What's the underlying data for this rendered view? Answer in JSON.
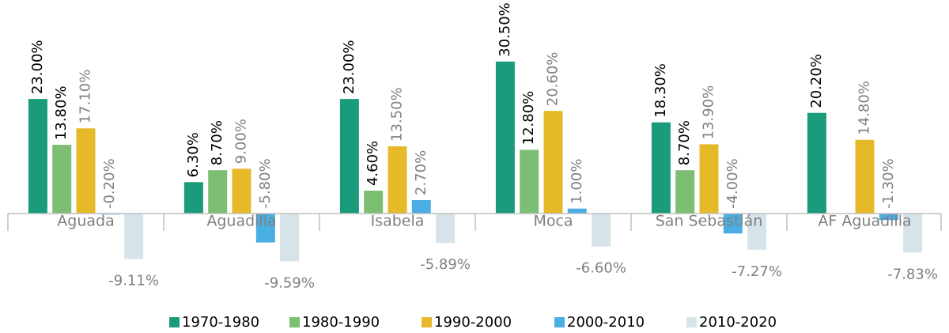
{
  "chart_data": {
    "type": "bar",
    "categories": [
      "Aguada",
      "Aguadilla",
      "Isabela",
      "Moca",
      "San Sebastián",
      "ÁF Aguadilla"
    ],
    "series": [
      {
        "name": "1970-1980",
        "color": "#1a9c7c",
        "values": [
          23.0,
          6.3,
          23.0,
          30.5,
          18.3,
          20.2
        ],
        "value_labels": [
          "23.00%",
          "6.30%",
          "23.00%",
          "30.50%",
          "18.30%",
          "20.20%"
        ]
      },
      {
        "name": "1980-1990",
        "color": "#7cbf72",
        "values": [
          13.8,
          8.7,
          4.6,
          12.8,
          8.7,
          null
        ],
        "value_labels": [
          "13.80%",
          "8.70%",
          "4.60%",
          "12.80%",
          "8.70%",
          null
        ]
      },
      {
        "name": "1990-2000",
        "color": "#e6b928",
        "values": [
          17.1,
          9.0,
          13.5,
          20.6,
          13.9,
          14.8
        ],
        "value_labels": [
          "17.10%",
          "9.00%",
          "13.50%",
          "20.60%",
          "13.90%",
          "14.80%"
        ]
      },
      {
        "name": "2000-2010",
        "color": "#4aaee3",
        "values": [
          -0.2,
          -5.8,
          2.7,
          1.0,
          -4.0,
          -1.3
        ],
        "value_labels": [
          "-0.20%",
          "-5.80%",
          "2.70%",
          "1.00%",
          "-4.00%",
          "-1.30%"
        ]
      },
      {
        "name": "2010-2020",
        "color": "#d6e4ea",
        "values": [
          -9.11,
          -9.59,
          -5.89,
          -6.6,
          -7.27,
          -7.83
        ],
        "value_labels": [
          "-9.11%",
          "-9.59%",
          "-5.89%",
          "-6.60%",
          "-7.27%",
          "-7.83%"
        ]
      }
    ],
    "legend": "bottom"
  }
}
